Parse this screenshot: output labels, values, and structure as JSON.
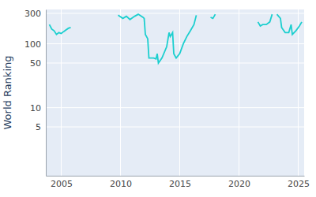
{
  "chart_data": {
    "type": "line",
    "y_label": "World Ranking",
    "x": [
      2004.0,
      2004.2,
      2004.4,
      2004.6,
      2004.8,
      2005.0,
      2005.2,
      2005.4,
      2005.6,
      2005.8,
      2007.0,
      2009.8,
      2010.2,
      2010.5,
      2010.8,
      2011.2,
      2011.5,
      2011.9,
      2012.0,
      2012.1,
      2012.3,
      2012.4,
      2012.8,
      2013.0,
      2013.1,
      2013.2,
      2013.5,
      2013.9,
      2014.1,
      2014.2,
      2014.4,
      2014.5,
      2014.7,
      2015.0,
      2015.3,
      2015.6,
      2015.9,
      2016.2,
      2016.4,
      2017.0,
      2017.6,
      2017.8,
      2018.0,
      2020.0,
      2021.6,
      2021.8,
      2022.0,
      2022.3,
      2022.6,
      2022.8,
      2023.0,
      2023.2,
      2023.5,
      2023.6,
      2023.9,
      2024.2,
      2024.4,
      2024.5,
      2024.8,
      2025.1,
      2025.3
    ],
    "series": [
      {
        "name": "World Ranking",
        "color": "#1ccfcf",
        "values": [
          200,
          170,
          160,
          140,
          150,
          145,
          155,
          165,
          175,
          180,
          null,
          280,
          250,
          270,
          240,
          270,
          290,
          260,
          250,
          140,
          120,
          60,
          60,
          58,
          70,
          50,
          60,
          90,
          150,
          130,
          150,
          70,
          60,
          70,
          100,
          130,
          160,
          200,
          280,
          null,
          260,
          250,
          290,
          null,
          220,
          190,
          200,
          200,
          220,
          290,
          null,
          290,
          250,
          180,
          150,
          150,
          200,
          140,
          160,
          190,
          220
        ]
      }
    ],
    "xlim": [
      2003.7,
      2025.5
    ],
    "xticks": [
      2005,
      2010,
      2015,
      2020,
      2025
    ],
    "ylim": [
      0.86,
      345
    ],
    "yticks": [
      5,
      10,
      50,
      100,
      300
    ],
    "log": "y",
    "grid": true
  }
}
